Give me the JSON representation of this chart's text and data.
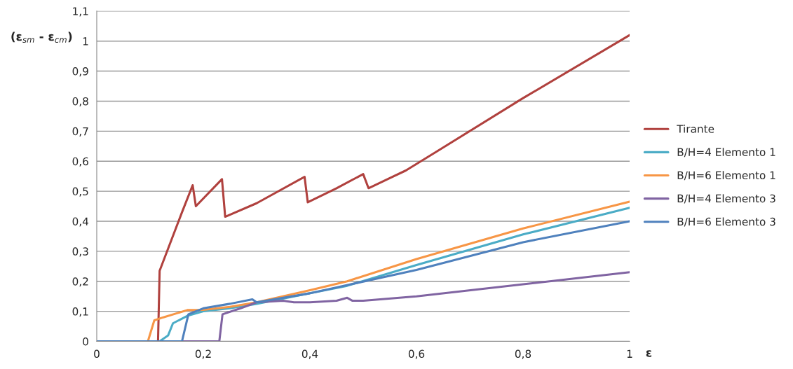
{
  "chart_data": {
    "type": "line",
    "xlabel": "ε",
    "ylabel": "(ε$_{sm}$ - ε$_{cm}$)",
    "xlim": [
      0,
      1
    ],
    "xticks": [
      0,
      {
        "value": 0.2,
        "label": "0,2"
      },
      {
        "value": 0.4,
        "label": "0,4"
      },
      {
        "value": 0.6,
        "label": "0,6"
      },
      {
        "value": 0.8,
        "label": "0,8"
      },
      1
    ],
    "ylim": [
      0,
      1.1
    ],
    "yticks": [
      0,
      {
        "value": 0.1,
        "label": "0,1"
      },
      {
        "value": 0.2,
        "label": "0,2"
      },
      {
        "value": 0.3,
        "label": "0,3"
      },
      {
        "value": 0.4,
        "label": "0,4"
      },
      {
        "value": 0.5,
        "label": "0,5"
      },
      {
        "value": 0.6,
        "label": "0,6"
      },
      {
        "value": 0.7,
        "label": "0,7"
      },
      {
        "value": 0.8,
        "label": "0,8"
      },
      {
        "value": 0.9,
        "label": "0,9"
      },
      {
        "value": 1,
        "label": "1"
      },
      {
        "value": 1.1,
        "label": "1,1"
      }
    ],
    "grid": "y",
    "legend": "right",
    "series": [
      {
        "name": "Tirante",
        "color": "#b0413e",
        "x": [
          0,
          0.115,
          0.118,
          0.16,
          0.18,
          0.186,
          0.235,
          0.241,
          0.3,
          0.39,
          0.396,
          0.45,
          0.5,
          0.51,
          0.58,
          0.634,
          0.8,
          1.0
        ],
        "values": [
          0,
          0,
          0.235,
          0.43,
          0.52,
          0.45,
          0.54,
          0.415,
          0.46,
          0.548,
          0.463,
          0.51,
          0.557,
          0.51,
          0.569,
          0.628,
          0.81,
          1.02
        ]
      },
      {
        "name": "B/H=4 Elemento 1",
        "color": "#4bacc6",
        "x": [
          0,
          0.118,
          0.134,
          0.143,
          0.17,
          0.2,
          0.25,
          0.3,
          0.4,
          0.47,
          0.6,
          0.8,
          1.0
        ],
        "values": [
          0,
          0,
          0.02,
          0.06,
          0.085,
          0.1,
          0.11,
          0.125,
          0.16,
          0.185,
          0.254,
          0.356,
          0.445
        ]
      },
      {
        "name": "B/H=6 Elemento 1",
        "color": "#f79646",
        "x": [
          0,
          0.096,
          0.108,
          0.125,
          0.17,
          0.2,
          0.25,
          0.3,
          0.4,
          0.47,
          0.6,
          0.8,
          1.0
        ],
        "values": [
          0,
          0,
          0.07,
          0.08,
          0.104,
          0.105,
          0.115,
          0.13,
          0.17,
          0.2,
          0.274,
          0.376,
          0.465
        ]
      },
      {
        "name": "B/H=4 Elemento 3",
        "color": "#8064a2",
        "x": [
          0,
          0.23,
          0.236,
          0.27,
          0.3,
          0.35,
          0.37,
          0.4,
          0.45,
          0.47,
          0.48,
          0.5,
          0.6,
          0.8,
          1.0
        ],
        "values": [
          0,
          0,
          0.09,
          0.11,
          0.13,
          0.135,
          0.13,
          0.13,
          0.135,
          0.145,
          0.135,
          0.135,
          0.15,
          0.19,
          0.23
        ]
      },
      {
        "name": "B/H=6 Elemento 3",
        "color": "#4f81bd",
        "x": [
          0,
          0.16,
          0.172,
          0.2,
          0.25,
          0.292,
          0.3,
          0.4,
          0.6,
          0.8,
          1.0
        ],
        "values": [
          0,
          0,
          0.09,
          0.11,
          0.125,
          0.14,
          0.13,
          0.16,
          0.238,
          0.33,
          0.4
        ]
      }
    ]
  }
}
